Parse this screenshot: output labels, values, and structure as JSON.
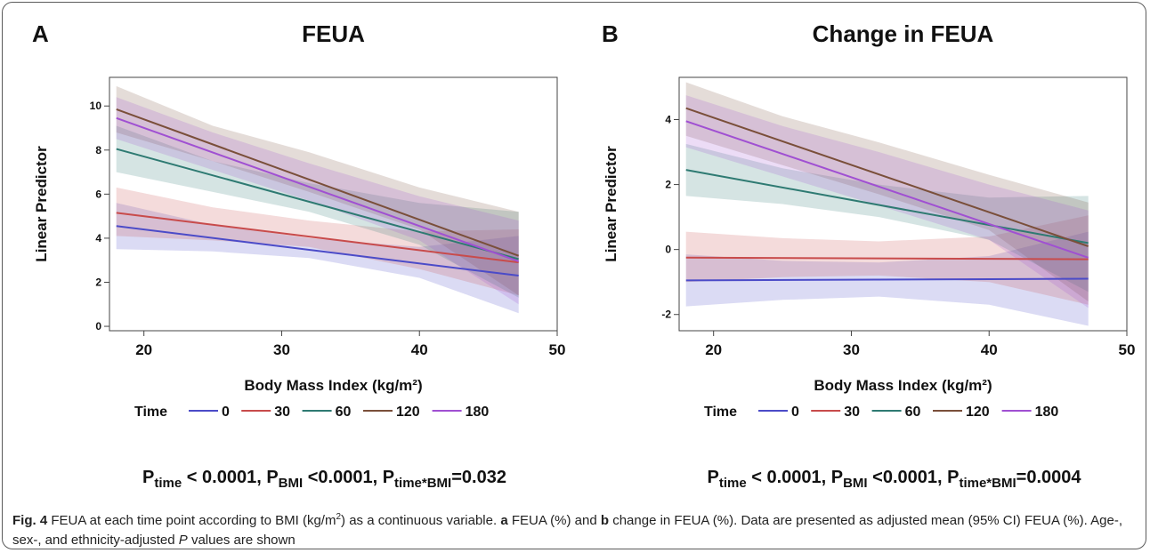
{
  "figure": {
    "panels": [
      {
        "letter": "A",
        "title": "FEUA",
        "pvalues": [
          {
            "pre": "P",
            "sub": "time",
            "post": " < 0.0001,  "
          },
          {
            "pre": "P",
            "sub": "BMI",
            "post": " <0.0001,  "
          },
          {
            "pre": "P",
            "sub": "time*BMI",
            "post": "=0.032"
          }
        ]
      },
      {
        "letter": "B",
        "title": "Change in FEUA",
        "pvalues": [
          {
            "pre": "P",
            "sub": "time",
            "post": " < 0.0001,  "
          },
          {
            "pre": "P",
            "sub": "BMI",
            "post": " <0.0001,  "
          },
          {
            "pre": "P",
            "sub": "time*BMI",
            "post": "=0.0004"
          }
        ]
      }
    ],
    "caption": {
      "fig_label": "Fig. 4",
      "text1": " FEUA at each time point according to BMI (kg/m",
      "sup": "2",
      "text2": ") as a continuous variable. ",
      "a": "a",
      "text3": " FEUA (%) and ",
      "b": "b",
      "text4": " change in FEUA (%). Data are presented as adjusted mean (95% CI) FEUA (%). Age-, sex-, and ethnicity-adjusted ",
      "p": "P",
      "text5": " values are shown"
    }
  },
  "chart_data": [
    {
      "type": "line",
      "title": "FEUA",
      "xlabel": "Body Mass Index (kg/m²)",
      "ylabel": "Linear Predictor",
      "xlim": [
        17.5,
        50
      ],
      "ylim": [
        -0.2,
        11.3
      ],
      "xticks": [
        20,
        30,
        40,
        50
      ],
      "yticks": [
        0,
        2,
        4,
        6,
        8,
        10
      ],
      "grid": false,
      "legend_position": "bottom",
      "legend_title": "Time",
      "series": [
        {
          "name": "0",
          "color": "#4b4bc8",
          "x": [
            18,
            47.2
          ],
          "y": [
            4.55,
            2.3
          ],
          "band": {
            "x": [
              18,
              25,
              32,
              40,
              47.2
            ],
            "lower": [
              3.5,
              3.4,
              3.1,
              2.2,
              0.6
            ],
            "upper": [
              5.6,
              4.6,
              4.0,
              3.6,
              4.1
            ]
          }
        },
        {
          "name": "30",
          "color": "#c84b4b",
          "x": [
            18,
            47.2
          ],
          "y": [
            5.15,
            2.9
          ],
          "band": {
            "x": [
              18,
              25,
              32,
              40,
              47.2
            ],
            "lower": [
              4.1,
              3.9,
              3.6,
              2.6,
              1.4
            ],
            "upper": [
              6.3,
              5.4,
              4.8,
              4.3,
              4.4
            ]
          }
        },
        {
          "name": "60",
          "color": "#2e7a72",
          "x": [
            18,
            47.2
          ],
          "y": [
            8.05,
            3.05
          ],
          "band": {
            "x": [
              18,
              25,
              32,
              40,
              47.2
            ],
            "lower": [
              7.0,
              6.1,
              5.2,
              3.7,
              1.3
            ],
            "upper": [
              9.1,
              7.5,
              6.5,
              5.6,
              5.2
            ]
          }
        },
        {
          "name": "120",
          "color": "#7a4f3a",
          "x": [
            18,
            47.2
          ],
          "y": [
            9.85,
            3.2
          ],
          "band": {
            "x": [
              18,
              25,
              32,
              40,
              47.2
            ],
            "lower": [
              8.8,
              7.5,
              6.1,
              4.4,
              1.4
            ],
            "upper": [
              10.9,
              9.1,
              7.9,
              6.3,
              5.2
            ]
          }
        },
        {
          "name": "180",
          "color": "#a050d2",
          "x": [
            18,
            47.2
          ],
          "y": [
            9.45,
            2.95
          ],
          "band": {
            "x": [
              18,
              25,
              32,
              40,
              47.2
            ],
            "lower": [
              8.5,
              7.1,
              5.7,
              3.9,
              1.0
            ],
            "upper": [
              10.4,
              8.8,
              7.4,
              5.9,
              4.8
            ]
          }
        }
      ]
    },
    {
      "type": "line",
      "title": "Change in FEUA",
      "xlabel": "Body Mass Index (kg/m²)",
      "ylabel": "Linear Predictor",
      "xlim": [
        17.5,
        50
      ],
      "ylim": [
        -2.5,
        5.3
      ],
      "xticks": [
        20,
        30,
        40,
        50
      ],
      "yticks": [
        -2,
        0,
        2,
        4
      ],
      "grid": false,
      "legend_position": "bottom",
      "legend_title": "Time",
      "series": [
        {
          "name": "0",
          "color": "#4b4bc8",
          "x": [
            18,
            47.2
          ],
          "y": [
            -0.95,
            -0.9
          ],
          "band": {
            "x": [
              18,
              25,
              32,
              40,
              47.2
            ],
            "lower": [
              -1.75,
              -1.55,
              -1.45,
              -1.7,
              -2.35
            ],
            "upper": [
              -0.15,
              -0.35,
              -0.4,
              -0.2,
              0.55
            ]
          }
        },
        {
          "name": "30",
          "color": "#c84b4b",
          "x": [
            18,
            47.2
          ],
          "y": [
            -0.25,
            -0.3
          ],
          "band": {
            "x": [
              18,
              25,
              32,
              40,
              47.2
            ],
            "lower": [
              -1.0,
              -0.85,
              -0.8,
              -1.0,
              -1.7
            ],
            "upper": [
              0.55,
              0.35,
              0.25,
              0.4,
              1.05
            ]
          }
        },
        {
          "name": "60",
          "color": "#2e7a72",
          "x": [
            18,
            47.2
          ],
          "y": [
            2.45,
            0.2
          ],
          "band": {
            "x": [
              18,
              25,
              32,
              40,
              47.2
            ],
            "lower": [
              1.65,
              1.4,
              1.0,
              0.3,
              -1.3
            ],
            "upper": [
              3.25,
              2.5,
              2.0,
              1.6,
              1.65
            ]
          }
        },
        {
          "name": "120",
          "color": "#7a4f3a",
          "x": [
            18,
            47.2
          ],
          "y": [
            4.35,
            0.1
          ],
          "band": {
            "x": [
              18,
              25,
              32,
              40,
              47.2
            ],
            "lower": [
              3.5,
              2.6,
              1.7,
              0.6,
              -1.6
            ],
            "upper": [
              5.15,
              4.1,
              3.3,
              2.3,
              1.45
            ]
          }
        },
        {
          "name": "180",
          "color": "#a050d2",
          "x": [
            18,
            47.2
          ],
          "y": [
            3.95,
            -0.25
          ],
          "band": {
            "x": [
              18,
              25,
              32,
              40,
              47.2
            ],
            "lower": [
              3.15,
              2.25,
              1.35,
              0.3,
              -1.8
            ],
            "upper": [
              4.75,
              3.8,
              3.0,
              2.0,
              1.2
            ]
          }
        }
      ]
    }
  ]
}
